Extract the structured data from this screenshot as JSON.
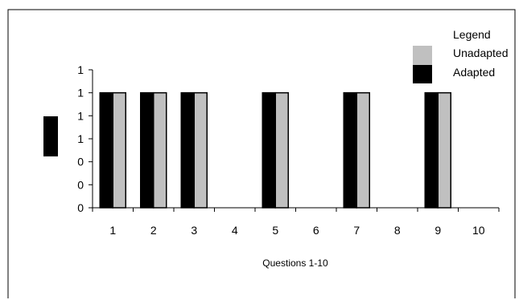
{
  "chart_data": {
    "type": "bar",
    "title": "",
    "xlabel": "Questions 1-10",
    "ylabel": "",
    "categories": [
      "1",
      "2",
      "3",
      "4",
      "5",
      "6",
      "7",
      "8",
      "9",
      "10"
    ],
    "y_tick_labels": [
      "0",
      "0",
      "0",
      "1",
      "1",
      "1",
      "1"
    ],
    "ylim": [
      0,
      1.2
    ],
    "grid": false,
    "legend": {
      "title": "Legend",
      "position": "top-right"
    },
    "series": [
      {
        "name": "Adapted",
        "color": "#000000",
        "values": [
          1,
          1,
          1,
          0,
          1,
          0,
          1,
          0,
          1,
          0
        ]
      },
      {
        "name": "Unadapted",
        "color": "#c0c0c0",
        "values": [
          1,
          1,
          1,
          0,
          1,
          0,
          1,
          0,
          1,
          0
        ]
      }
    ],
    "y_axis_label_swatch_color": "#000000"
  }
}
